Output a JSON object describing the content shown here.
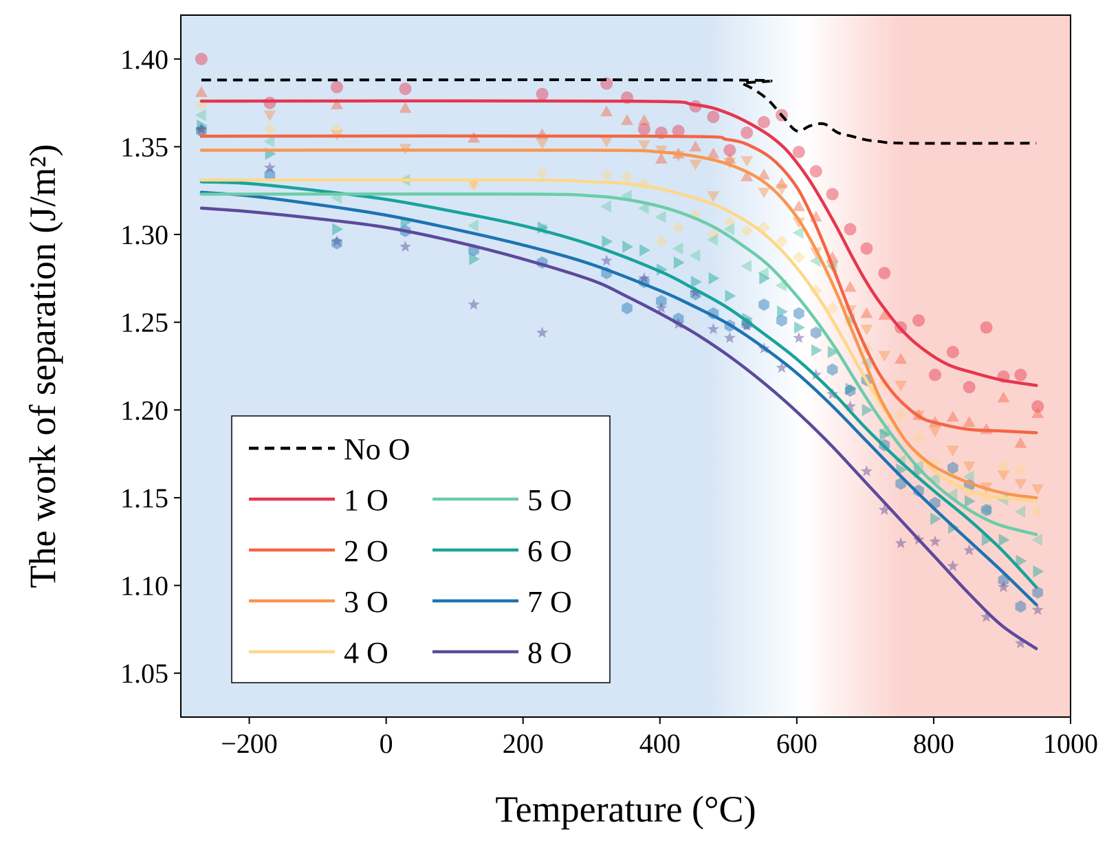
{
  "chart_data": {
    "type": "line",
    "title": "",
    "xlabel": "Temperature (°C)",
    "ylabel": "The work of separation (J/m²)",
    "xlim": [
      -300,
      1000
    ],
    "ylim": [
      1.025,
      1.425
    ],
    "xticks": [
      -200,
      0,
      200,
      400,
      600,
      800,
      1000
    ],
    "xtick_labels": [
      "−200",
      "0",
      "200",
      "400",
      "600",
      "800",
      "1000"
    ],
    "yticks": [
      1.05,
      1.1,
      1.15,
      1.2,
      1.25,
      1.3,
      1.35,
      1.4
    ],
    "ytick_labels": [
      "1.05",
      "1.10",
      "1.15",
      "1.20",
      "1.25",
      "1.30",
      "1.35",
      "1.40"
    ],
    "background_regions": [
      {
        "name": "cold",
        "color": "#d6e6f6",
        "from": -300,
        "to": 470
      },
      {
        "name": "transition",
        "color": "#ffffff",
        "from": 470,
        "to": 750
      },
      {
        "name": "hot",
        "color": "#fbd4d0",
        "from": 750,
        "to": 1000
      }
    ],
    "legend": {
      "position": "bottom-left",
      "entries": [
        {
          "label": "No O",
          "color": "#000000",
          "dashed": true
        },
        {
          "label": "1 O",
          "color": "#e6364e"
        },
        {
          "label": "2 O",
          "color": "#f46545"
        },
        {
          "label": "3 O",
          "color": "#f99650"
        },
        {
          "label": "4 O",
          "color": "#fdd88a"
        },
        {
          "label": "5 O",
          "color": "#6cccaa"
        },
        {
          "label": "6 O",
          "color": "#18a39a"
        },
        {
          "label": "7 O",
          "color": "#1d73b2"
        },
        {
          "label": "8 O",
          "color": "#5c4a9c"
        }
      ]
    },
    "series": [
      {
        "name": "No O",
        "color": "#000000",
        "dashed": true,
        "x": [
          -270,
          500,
          520,
          540,
          560,
          580,
          600,
          620,
          640,
          660,
          680,
          700,
          720,
          760,
          950
        ],
        "y": [
          1.388,
          1.388,
          1.386,
          1.382,
          1.376,
          1.367,
          1.359,
          1.362,
          1.363,
          1.358,
          1.356,
          1.354,
          1.353,
          1.352,
          1.352
        ]
      },
      {
        "name": "1 O",
        "color": "#e6364e",
        "marker": "circle",
        "x": [
          -270,
          350,
          450,
          500,
          550,
          580,
          600,
          620,
          640,
          660,
          680,
          700,
          720,
          750,
          780,
          820,
          860,
          900,
          950
        ],
        "y": [
          1.376,
          1.376,
          1.374,
          1.369,
          1.359,
          1.35,
          1.341,
          1.33,
          1.317,
          1.303,
          1.288,
          1.274,
          1.262,
          1.247,
          1.236,
          1.226,
          1.221,
          1.217,
          1.214
        ],
        "points_x": [
          -270,
          -170,
          -72,
          28,
          228,
          322,
          352,
          377,
          402,
          427,
          452,
          478,
          502,
          527,
          552,
          578,
          603,
          628,
          652,
          678,
          702,
          728,
          752,
          778,
          802,
          828,
          852,
          877,
          902,
          927,
          952
        ],
        "points_y": [
          1.4,
          1.375,
          1.384,
          1.383,
          1.38,
          1.386,
          1.378,
          1.36,
          1.358,
          1.359,
          1.373,
          1.367,
          1.348,
          1.358,
          1.364,
          1.368,
          1.347,
          1.336,
          1.323,
          1.303,
          1.292,
          1.278,
          1.247,
          1.251,
          1.22,
          1.233,
          1.213,
          1.247,
          1.219,
          1.22,
          1.202
        ]
      },
      {
        "name": "2 O",
        "color": "#f46545",
        "marker": "triangle-up",
        "x": [
          -270,
          400,
          500,
          540,
          570,
          600,
          620,
          640,
          660,
          680,
          700,
          720,
          740,
          760,
          780,
          800,
          850,
          900,
          950
        ],
        "y": [
          1.356,
          1.356,
          1.354,
          1.349,
          1.341,
          1.327,
          1.312,
          1.294,
          1.274,
          1.254,
          1.236,
          1.221,
          1.21,
          1.202,
          1.196,
          1.193,
          1.189,
          1.188,
          1.187
        ],
        "points_x": [
          -270,
          -72,
          28,
          128,
          228,
          322,
          352,
          377,
          402,
          427,
          452,
          478,
          502,
          527,
          552,
          578,
          603,
          628,
          652,
          678,
          702,
          728,
          752,
          778,
          802,
          828,
          852,
          877,
          902,
          927,
          952
        ],
        "points_y": [
          1.381,
          1.374,
          1.372,
          1.355,
          1.357,
          1.37,
          1.365,
          1.365,
          1.343,
          1.346,
          1.35,
          1.346,
          1.343,
          1.333,
          1.334,
          1.329,
          1.316,
          1.31,
          1.287,
          1.27,
          1.255,
          1.254,
          1.229,
          1.197,
          1.193,
          1.196,
          1.193,
          1.189,
          1.207,
          1.181,
          1.198
        ]
      },
      {
        "name": "3 O",
        "color": "#f99650",
        "marker": "triangle-down",
        "x": [
          -270,
          300,
          400,
          460,
          500,
          540,
          570,
          600,
          620,
          640,
          660,
          680,
          700,
          720,
          740,
          760,
          780,
          800,
          830,
          870,
          910,
          950
        ],
        "y": [
          1.348,
          1.348,
          1.347,
          1.344,
          1.34,
          1.333,
          1.324,
          1.31,
          1.297,
          1.282,
          1.265,
          1.246,
          1.227,
          1.208,
          1.194,
          1.182,
          1.174,
          1.168,
          1.162,
          1.156,
          1.152,
          1.15
        ],
        "points_x": [
          -270,
          -170,
          -72,
          28,
          128,
          228,
          322,
          377,
          402,
          427,
          452,
          478,
          502,
          527,
          552,
          578,
          603,
          628,
          652,
          678,
          702,
          728,
          752,
          778,
          802,
          828,
          852,
          877,
          902,
          927,
          952
        ],
        "points_y": [
          1.358,
          1.368,
          1.357,
          1.349,
          1.329,
          1.352,
          1.353,
          1.351,
          1.348,
          1.345,
          1.34,
          1.322,
          1.341,
          1.342,
          1.324,
          1.326,
          1.307,
          1.29,
          1.282,
          1.257,
          1.246,
          1.231,
          1.214,
          1.197,
          1.188,
          1.177,
          1.168,
          1.156,
          1.163,
          1.158,
          1.155
        ]
      },
      {
        "name": "4 O",
        "color": "#fdd88a",
        "marker": "diamond",
        "x": [
          -270,
          200,
          300,
          350,
          400,
          440,
          480,
          520,
          550,
          580,
          610,
          640,
          670,
          700,
          730,
          760,
          790,
          820,
          860,
          900,
          950
        ],
        "y": [
          1.331,
          1.331,
          1.33,
          1.329,
          1.326,
          1.322,
          1.317,
          1.309,
          1.301,
          1.29,
          1.276,
          1.259,
          1.239,
          1.218,
          1.199,
          1.182,
          1.169,
          1.16,
          1.153,
          1.15,
          1.148
        ],
        "points_x": [
          -270,
          -170,
          -72,
          28,
          128,
          228,
          322,
          352,
          377,
          402,
          427,
          452,
          478,
          502,
          527,
          552,
          578,
          603,
          628,
          652,
          678,
          702,
          728,
          752,
          778,
          802,
          828,
          852,
          877,
          902,
          927,
          952
        ],
        "points_y": [
          1.374,
          1.36,
          1.36,
          1.331,
          1.328,
          1.335,
          1.334,
          1.333,
          1.329,
          1.296,
          1.304,
          1.311,
          1.3,
          1.307,
          1.302,
          1.304,
          1.296,
          1.287,
          1.268,
          1.258,
          1.25,
          1.235,
          1.215,
          1.197,
          1.184,
          1.17,
          1.163,
          1.153,
          1.15,
          1.168,
          1.166,
          1.142
        ]
      },
      {
        "name": "5 O",
        "color": "#6cccaa",
        "marker": "triangle-left",
        "x": [
          -270,
          200,
          300,
          350,
          400,
          440,
          480,
          520,
          560,
          600,
          630,
          660,
          690,
          720,
          750,
          780,
          810,
          840,
          870,
          900,
          950
        ],
        "y": [
          1.323,
          1.323,
          1.322,
          1.32,
          1.316,
          1.311,
          1.304,
          1.294,
          1.282,
          1.265,
          1.25,
          1.233,
          1.214,
          1.196,
          1.18,
          1.166,
          1.155,
          1.146,
          1.139,
          1.134,
          1.129
        ],
        "points_x": [
          -270,
          -170,
          -72,
          28,
          128,
          228,
          322,
          352,
          377,
          402,
          427,
          452,
          478,
          502,
          527,
          552,
          578,
          603,
          628,
          652,
          678,
          702,
          728,
          752,
          778,
          802,
          828,
          852,
          877,
          902,
          927,
          952
        ],
        "points_y": [
          1.368,
          1.353,
          1.321,
          1.331,
          1.305,
          1.303,
          1.316,
          1.322,
          1.315,
          1.31,
          1.292,
          1.288,
          1.297,
          1.303,
          1.282,
          1.278,
          1.271,
          1.301,
          1.285,
          1.282,
          1.252,
          1.227,
          1.188,
          1.171,
          1.168,
          1.161,
          1.152,
          1.162,
          1.143,
          1.149,
          1.142,
          1.126
        ]
      },
      {
        "name": "6 O",
        "color": "#18a39a",
        "marker": "triangle-right",
        "x": [
          -270,
          -200,
          -100,
          0,
          100,
          200,
          300,
          400,
          450,
          500,
          550,
          600,
          650,
          700,
          750,
          800,
          850,
          900,
          950
        ],
        "y": [
          1.33,
          1.329,
          1.325,
          1.32,
          1.313,
          1.305,
          1.294,
          1.279,
          1.269,
          1.258,
          1.244,
          1.229,
          1.211,
          1.19,
          1.171,
          1.154,
          1.138,
          1.12,
          1.099
        ],
        "points_x": [
          -270,
          -170,
          -72,
          28,
          128,
          228,
          322,
          352,
          377,
          402,
          427,
          452,
          478,
          502,
          527,
          552,
          578,
          603,
          628,
          652,
          678,
          702,
          728,
          752,
          778,
          802,
          828,
          852,
          877,
          902,
          927,
          952
        ],
        "points_y": [
          1.362,
          1.346,
          1.303,
          1.307,
          1.286,
          1.304,
          1.296,
          1.293,
          1.291,
          1.28,
          1.284,
          1.273,
          1.275,
          1.265,
          1.252,
          1.275,
          1.256,
          1.247,
          1.234,
          1.233,
          1.212,
          1.2,
          1.186,
          1.166,
          1.165,
          1.138,
          1.133,
          1.148,
          1.126,
          1.126,
          1.114,
          1.108
        ]
      },
      {
        "name": "7 O",
        "color": "#1d73b2",
        "marker": "hexagon",
        "x": [
          -270,
          -200,
          -100,
          0,
          100,
          200,
          300,
          400,
          450,
          500,
          550,
          600,
          650,
          700,
          750,
          800,
          850,
          900,
          950
        ],
        "y": [
          1.324,
          1.322,
          1.317,
          1.311,
          1.303,
          1.294,
          1.283,
          1.268,
          1.259,
          1.249,
          1.236,
          1.221,
          1.203,
          1.183,
          1.163,
          1.144,
          1.126,
          1.108,
          1.089
        ],
        "points_x": [
          -270,
          -170,
          -72,
          28,
          128,
          228,
          322,
          352,
          377,
          402,
          427,
          452,
          478,
          502,
          527,
          552,
          578,
          603,
          628,
          652,
          678,
          702,
          728,
          752,
          778,
          802,
          828,
          852,
          877,
          902,
          927,
          952
        ],
        "points_y": [
          1.359,
          1.334,
          1.295,
          1.302,
          1.291,
          1.284,
          1.278,
          1.258,
          1.273,
          1.262,
          1.252,
          1.266,
          1.255,
          1.248,
          1.249,
          1.26,
          1.251,
          1.255,
          1.244,
          1.223,
          1.211,
          1.217,
          1.18,
          1.158,
          1.154,
          1.147,
          1.167,
          1.157,
          1.143,
          1.103,
          1.088,
          1.096
        ]
      },
      {
        "name": "8 O",
        "color": "#5c4a9c",
        "marker": "star",
        "x": [
          -270,
          -200,
          -100,
          0,
          100,
          200,
          300,
          350,
          400,
          450,
          500,
          550,
          600,
          650,
          700,
          750,
          800,
          850,
          900,
          950
        ],
        "y": [
          1.315,
          1.313,
          1.309,
          1.304,
          1.296,
          1.286,
          1.274,
          1.265,
          1.255,
          1.244,
          1.231,
          1.216,
          1.199,
          1.18,
          1.159,
          1.138,
          1.117,
          1.096,
          1.077,
          1.064
        ],
        "points_x": [
          -270,
          -170,
          -72,
          28,
          128,
          228,
          322,
          377,
          402,
          427,
          452,
          478,
          502,
          527,
          552,
          578,
          603,
          628,
          652,
          678,
          702,
          728,
          752,
          778,
          802,
          828,
          852,
          877,
          902,
          927,
          952
        ],
        "points_y": [
          1.36,
          1.338,
          1.296,
          1.293,
          1.26,
          1.244,
          1.285,
          1.275,
          1.258,
          1.249,
          1.267,
          1.246,
          1.241,
          1.248,
          1.235,
          1.224,
          1.241,
          1.22,
          1.209,
          1.202,
          1.165,
          1.143,
          1.124,
          1.126,
          1.125,
          1.111,
          1.12,
          1.082,
          1.099,
          1.067,
          1.086
        ]
      }
    ]
  }
}
